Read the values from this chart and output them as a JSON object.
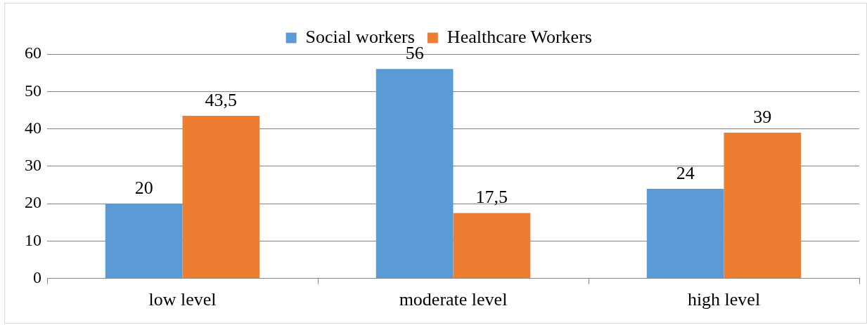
{
  "chart_data": {
    "type": "bar",
    "categories": [
      "low level",
      "moderate level",
      "high level"
    ],
    "series": [
      {
        "name": "Social workers",
        "color": "#5b9bd5",
        "values": [
          20,
          56,
          24
        ],
        "value_labels": [
          "20",
          "56",
          "24"
        ]
      },
      {
        "name": "Healthcare Workers",
        "color": "#ed7d31",
        "values": [
          43.5,
          17.5,
          39
        ],
        "value_labels": [
          "43,5",
          "17,5",
          "39"
        ]
      }
    ],
    "ylim": [
      0,
      60
    ],
    "yticks": [
      0,
      10,
      20,
      30,
      40,
      50,
      60
    ],
    "grid": "y",
    "legend": "top"
  }
}
